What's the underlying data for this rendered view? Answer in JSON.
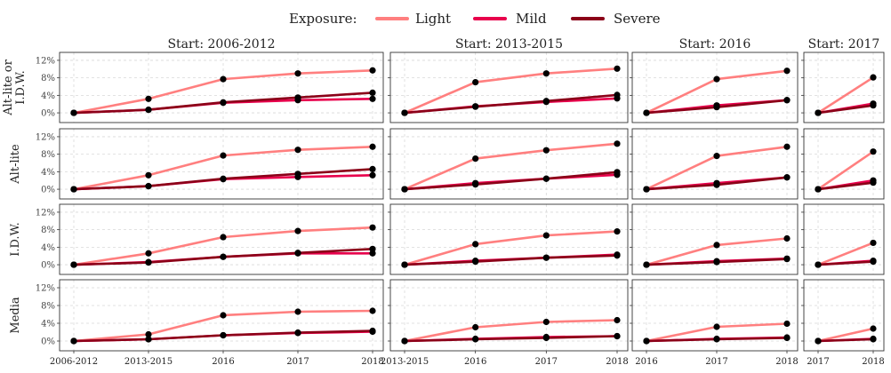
{
  "legend": {
    "title": "Exposure:",
    "items": [
      {
        "key": "light",
        "label": "Light",
        "color": "#ff7f7f"
      },
      {
        "key": "mild",
        "label": "Mild",
        "color": "#e8004c"
      },
      {
        "key": "severe",
        "label": "Severe",
        "color": "#8b0018"
      }
    ]
  },
  "chart_data": {
    "type": "line",
    "grid": true,
    "legend_placement": "top",
    "ylim": [
      -0.01,
      0.13
    ],
    "yticks": [
      0,
      0.04,
      0.08,
      0.12
    ],
    "ytick_labels": [
      "0%",
      "4%",
      "8%",
      "12%"
    ],
    "columns": [
      {
        "title": "Start: 2006-2012",
        "x": [
          "2006-2012",
          "2013-2015",
          "2016",
          "2017",
          "2018"
        ]
      },
      {
        "title": "Start: 2013-2015",
        "x": [
          "2013-2015",
          "2016",
          "2017",
          "2018"
        ]
      },
      {
        "title": "Start: 2016",
        "x": [
          "2016",
          "2017",
          "2018"
        ]
      },
      {
        "title": "Start: 2017",
        "x": [
          "2017",
          "2018"
        ]
      }
    ],
    "rows": [
      {
        "label": [
          "Alt-lite or",
          "I.D.W."
        ],
        "panels": [
          {
            "light": [
              0,
              0.032,
              0.077,
              0.09,
              0.097
            ],
            "mild": [
              0,
              0.007,
              0.023,
              0.029,
              0.032
            ],
            "severe": [
              0,
              0.007,
              0.024,
              0.035,
              0.046
            ]
          },
          {
            "light": [
              0,
              0.07,
              0.09,
              0.101
            ],
            "mild": [
              0,
              0.015,
              0.025,
              0.033
            ],
            "severe": [
              0,
              0.014,
              0.027,
              0.041
            ]
          },
          {
            "light": [
              0,
              0.077,
              0.096
            ],
            "mild": [
              0,
              0.017,
              0.029
            ],
            "severe": [
              0,
              0.013,
              0.029
            ]
          },
          {
            "light": [
              0,
              0.081
            ],
            "mild": [
              0,
              0.021
            ],
            "severe": [
              0,
              0.017
            ]
          }
        ]
      },
      {
        "label": [
          "Alt-lite"
        ],
        "panels": [
          {
            "light": [
              0,
              0.032,
              0.077,
              0.09,
              0.097
            ],
            "mild": [
              0,
              0.007,
              0.023,
              0.028,
              0.032
            ],
            "severe": [
              0,
              0.007,
              0.024,
              0.035,
              0.046
            ]
          },
          {
            "light": [
              0,
              0.07,
              0.089,
              0.104
            ],
            "mild": [
              0,
              0.014,
              0.024,
              0.033
            ],
            "severe": [
              0,
              0.011,
              0.024,
              0.039
            ]
          },
          {
            "light": [
              0,
              0.076,
              0.097
            ],
            "mild": [
              0,
              0.014,
              0.027
            ],
            "severe": [
              0,
              0.01,
              0.027
            ]
          },
          {
            "light": [
              0,
              0.086
            ],
            "mild": [
              0,
              0.02
            ],
            "severe": [
              0,
              0.015
            ]
          }
        ]
      },
      {
        "label": [
          "I.D.W."
        ],
        "panels": [
          {
            "light": [
              0,
              0.026,
              0.063,
              0.077,
              0.085
            ],
            "mild": [
              0,
              0.006,
              0.018,
              0.026,
              0.026
            ],
            "severe": [
              0,
              0.005,
              0.018,
              0.027,
              0.036
            ]
          },
          {
            "light": [
              0,
              0.047,
              0.067,
              0.076
            ],
            "mild": [
              0,
              0.009,
              0.016,
              0.023
            ],
            "severe": [
              0,
              0.007,
              0.016,
              0.021
            ]
          },
          {
            "light": [
              0,
              0.045,
              0.06
            ],
            "mild": [
              0,
              0.008,
              0.014
            ],
            "severe": [
              0,
              0.006,
              0.013
            ]
          },
          {
            "light": [
              0,
              0.05
            ],
            "mild": [
              0,
              0.009
            ],
            "severe": [
              0,
              0.007
            ]
          }
        ]
      },
      {
        "label": [
          "Media"
        ],
        "panels": [
          {
            "light": [
              0,
              0.015,
              0.058,
              0.066,
              0.068
            ],
            "mild": [
              0,
              0.004,
              0.013,
              0.018,
              0.021
            ],
            "severe": [
              0,
              0.004,
              0.013,
              0.019,
              0.023
            ]
          },
          {
            "light": [
              0,
              0.031,
              0.043,
              0.047
            ],
            "mild": [
              0,
              0.005,
              0.009,
              0.011
            ],
            "severe": [
              0,
              0.004,
              0.007,
              0.011
            ]
          },
          {
            "light": [
              0,
              0.032,
              0.039
            ],
            "mild": [
              0,
              0.005,
              0.008
            ],
            "severe": [
              0,
              0.004,
              0.007
            ]
          },
          {
            "light": [
              0,
              0.028
            ],
            "mild": [
              0,
              0.005
            ],
            "severe": [
              0,
              0.004
            ]
          }
        ]
      }
    ]
  }
}
